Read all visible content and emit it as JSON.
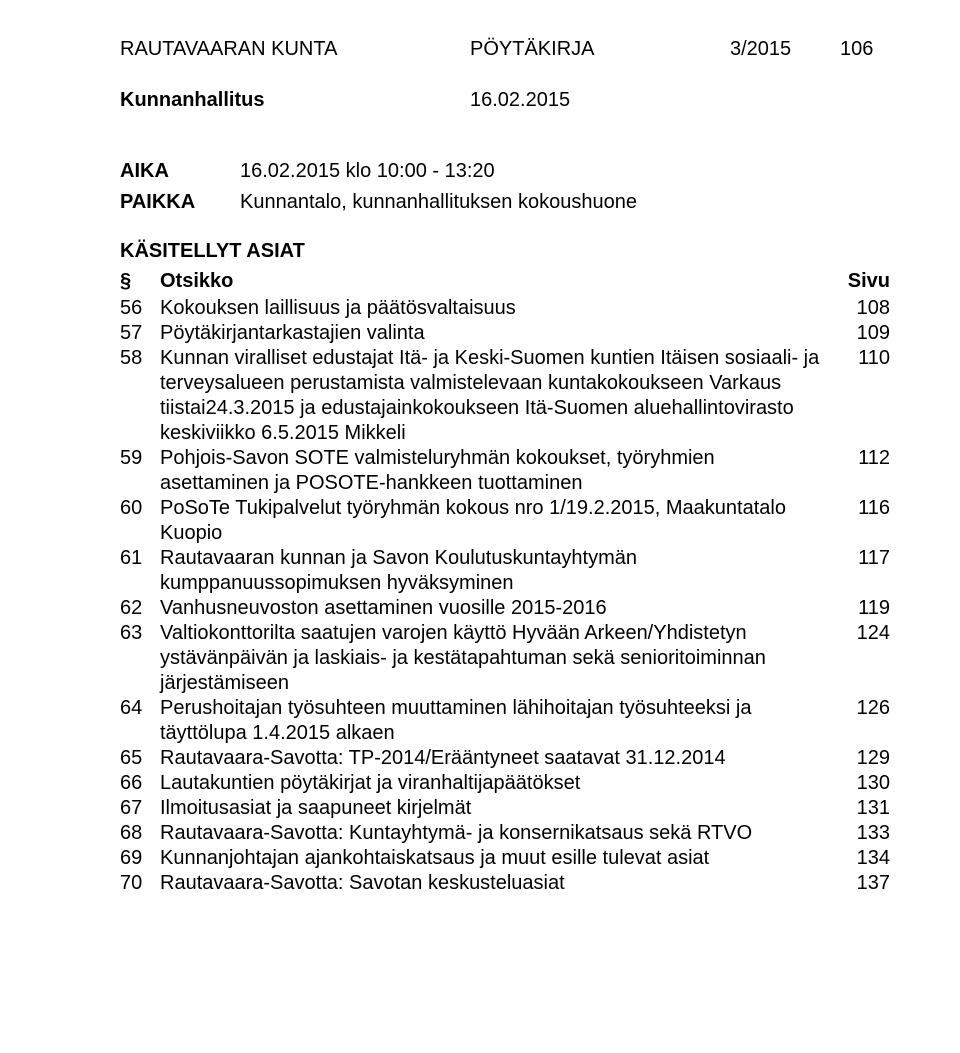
{
  "header": {
    "org": "RAUTAVAARAN KUNTA",
    "doc_type": "PÖYTÄKIRJA",
    "doc_num": "3/2015",
    "page_num": "106"
  },
  "subheader": {
    "body": "Kunnanhallitus",
    "date": "16.02.2015"
  },
  "meta": {
    "time_label": "AIKA",
    "time_value": "16.02.2015 klo 10:00 - 13:20",
    "place_label": "PAIKKA",
    "place_value": "Kunnantalo, kunnanhallituksen kokoushuone"
  },
  "asiat_heading": "KÄSITELLYT ASIAT",
  "table_header": {
    "sym": "§",
    "title": "Otsikko",
    "page": "Sivu"
  },
  "items": [
    {
      "num": "56",
      "title": "Kokouksen laillisuus ja päätösvaltaisuus",
      "page": "108"
    },
    {
      "num": "57",
      "title": "Pöytäkirjantarkastajien valinta",
      "page": "109"
    },
    {
      "num": "58",
      "title": "Kunnan viralliset edustajat  Itä- ja Keski-Suomen kuntien Itäisen sosiaali- ja terveysalueen perustamista valmistelevaan kuntakokoukseen Varkaus tiistai24.3.2015 ja edustajainkokoukseen Itä-Suomen aluehallintovirasto keskiviikko 6.5.2015 Mikkeli",
      "page": "110"
    },
    {
      "num": "59",
      "title": "Pohjois-Savon SOTE valmisteluryhmän kokoukset, työryhmien asettaminen ja POSOTE-hankkeen tuottaminen",
      "page": "112"
    },
    {
      "num": "60",
      "title": "PoSoTe Tukipalvelut työryhmän kokous nro 1/19.2.2015, Maakuntatalo Kuopio",
      "page": "116"
    },
    {
      "num": "61",
      "title": "Rautavaaran kunnan ja Savon Koulutuskuntayhtymän kumppanuussopimuksen hyväksyminen",
      "page": "117"
    },
    {
      "num": "62",
      "title": "Vanhusneuvoston asettaminen vuosille 2015-2016",
      "page": "119"
    },
    {
      "num": "63",
      "title": "Valtiokonttorilta saatujen varojen käyttö Hyvään Arkeen/Yhdistetyn ystävänpäivän ja laskiais- ja kestätapahtuman sekä senioritoiminnan järjestämiseen",
      "page": "124"
    },
    {
      "num": "64",
      "title": "Perushoitajan työsuhteen muuttaminen lähihoitajan työsuhteeksi ja täyttölupa 1.4.2015 alkaen",
      "page": "126"
    },
    {
      "num": "65",
      "title": "Rautavaara-Savotta: TP-2014/Erääntyneet saatavat 31.12.2014",
      "page": "129"
    },
    {
      "num": "66",
      "title": "Lautakuntien pöytäkirjat ja viranhaltijapäätökset",
      "page": "130"
    },
    {
      "num": "67",
      "title": "Ilmoitusasiat ja saapuneet kirjelmät",
      "page": "131"
    },
    {
      "num": "68",
      "title": "Rautavaara-Savotta: Kuntayhtymä- ja konsernikatsaus sekä RTVO",
      "page": "133"
    },
    {
      "num": "69",
      "title": "Kunnanjohtajan ajankohtaiskatsaus ja muut esille tulevat asiat",
      "page": "134"
    },
    {
      "num": "70",
      "title": "Rautavaara-Savotta: Savotan keskusteluasiat",
      "page": "137"
    }
  ]
}
